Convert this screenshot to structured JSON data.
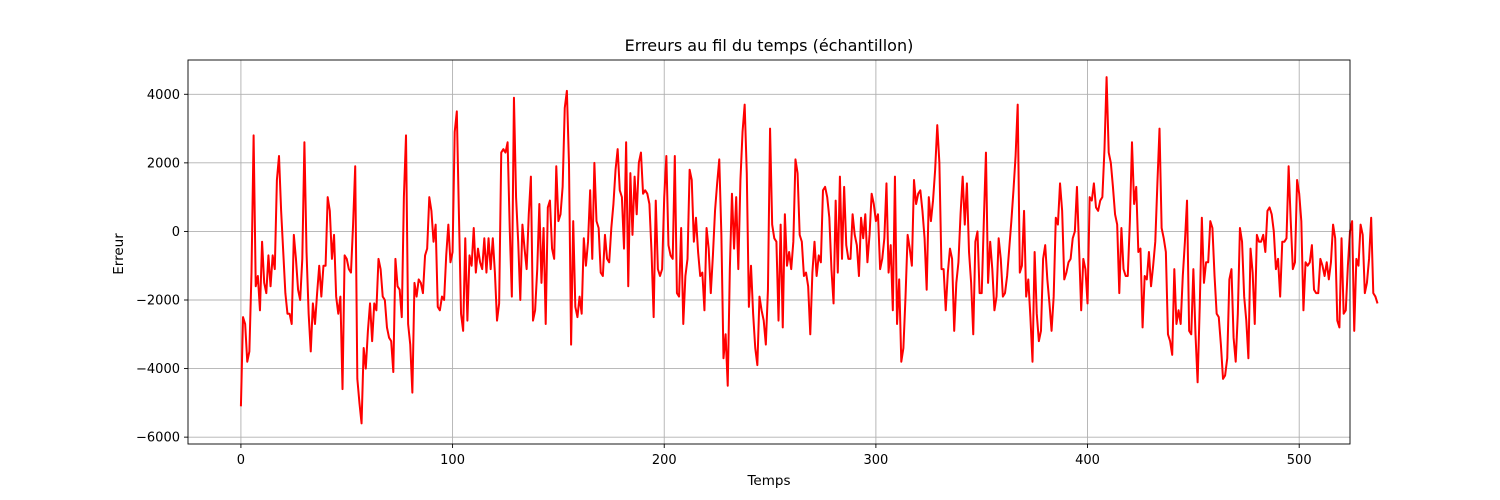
{
  "chart_data": {
    "type": "line",
    "title": "Erreurs au fil du temps (échantillon)",
    "xlabel": "Temps",
    "ylabel": "Erreur",
    "xlim": [
      -25,
      524
    ],
    "ylim": [
      -6200,
      5000
    ],
    "xticks": [
      0,
      100,
      200,
      300,
      400,
      500
    ],
    "yticks": [
      -6000,
      -4000,
      -2000,
      0,
      2000,
      4000
    ],
    "grid": true,
    "series": [
      {
        "color": "#ff0000",
        "x_start": 0,
        "x_step": 1,
        "values": [
          -5100,
          -2500,
          -2700,
          -3800,
          -3500,
          -1200,
          2800,
          -1600,
          -1300,
          -2300,
          -300,
          -1500,
          -1800,
          -700,
          -1600,
          -700,
          -1100,
          1500,
          2200,
          600,
          -600,
          -1800,
          -2400,
          -2400,
          -2700,
          -100,
          -800,
          -1700,
          -2000,
          -800,
          2600,
          -600,
          -2400,
          -3500,
          -2100,
          -2700,
          -1800,
          -1000,
          -1900,
          -1000,
          -1000,
          1000,
          600,
          -800,
          -100,
          -1900,
          -2400,
          -1900,
          -4600,
          -700,
          -800,
          -1100,
          -1200,
          200,
          1900,
          -4300,
          -5000,
          -5600,
          -3400,
          -4000,
          -2900,
          -2100,
          -3200,
          -2100,
          -2300,
          -800,
          -1100,
          -1900,
          -2000,
          -2800,
          -3100,
          -3200,
          -4100,
          -800,
          -1600,
          -1700,
          -2500,
          1000,
          2800,
          -2700,
          -3300,
          -4700,
          -1500,
          -1900,
          -1400,
          -1500,
          -1800,
          -700,
          -500,
          1000,
          600,
          -300,
          200,
          -2200,
          -2300,
          -1900,
          -2000,
          -700,
          200,
          -900,
          -600,
          2900,
          3500,
          500,
          -2400,
          -2900,
          -200,
          -2600,
          -700,
          -1000,
          100,
          -1200,
          -500,
          -900,
          -1100,
          -200,
          -1200,
          -200,
          -1100,
          -200,
          -1200,
          -2600,
          -2100,
          2300,
          2400,
          2300,
          2600,
          100,
          -1900,
          3900,
          1000,
          -300,
          -2000,
          200,
          -500,
          -1100,
          500,
          1600,
          -2600,
          -2300,
          -1100,
          800,
          -1500,
          100,
          -2700,
          700,
          900,
          -500,
          -800,
          1900,
          300,
          500,
          1300,
          3600,
          4100,
          2000,
          -3300,
          300,
          -2200,
          -2500,
          -1900,
          -2400,
          -200,
          -1000,
          -300,
          1200,
          -800,
          2000,
          300,
          100,
          -1200,
          -1300,
          -100,
          -800,
          -900,
          100,
          800,
          1800,
          2400,
          1200,
          1000,
          -500,
          2600,
          -1600,
          1700,
          -100,
          1600,
          500,
          2000,
          2300,
          1100,
          1200,
          1100,
          800,
          -600,
          -2500,
          900,
          -1100,
          -1300,
          -1100,
          1000,
          2200,
          -400,
          -700,
          -800,
          2200,
          -1800,
          -1900,
          100,
          -2700,
          -1300,
          -800,
          1800,
          1500,
          -300,
          400,
          -600,
          -1300,
          -1200,
          -2300,
          100,
          -500,
          -1800,
          -700,
          600,
          1400,
          2100,
          -100,
          -3700,
          -3000,
          -4500,
          -1100,
          1100,
          -500,
          1000,
          -1100,
          1500,
          2900,
          3700,
          1700,
          -2200,
          -1000,
          -2400,
          -3400,
          -3900,
          -1900,
          -2300,
          -2600,
          -3300,
          -1700,
          3000,
          200,
          -200,
          -300,
          -2600,
          200,
          -2800,
          500,
          -1000,
          -600,
          -1100,
          -300,
          2100,
          1700,
          -100,
          -300,
          -1300,
          -1200,
          -1600,
          -3000,
          -1200,
          -300,
          -1300,
          -700,
          -900,
          1200,
          1300,
          1000,
          400,
          -1100,
          -2100,
          900,
          -1200,
          1600,
          -800,
          1300,
          -400,
          -800,
          -800,
          500,
          -100,
          -400,
          -1300,
          400,
          -200,
          500,
          -900,
          -100,
          1100,
          800,
          300,
          500,
          -1100,
          -800,
          -200,
          1400,
          -1200,
          -400,
          -2300,
          1600,
          -2700,
          -1400,
          -3800,
          -3400,
          -1900,
          -100,
          -500,
          -1000,
          1500,
          800,
          1100,
          1200,
          600,
          -200,
          -1700,
          1000,
          300,
          900,
          1800,
          3100,
          2000,
          -1100,
          -1100,
          -2300,
          -1200,
          -500,
          -800,
          -2900,
          -1500,
          -900,
          500,
          1600,
          200,
          1400,
          -600,
          -1500,
          -3000,
          -300,
          0,
          -1800,
          -1800,
          300,
          2300,
          -1500,
          -300,
          -1100,
          -2300,
          -1900,
          -200,
          -800,
          -1900,
          -1800,
          -1300,
          -500,
          300,
          1200,
          2200,
          3700,
          -1200,
          -1000,
          600,
          -1900,
          -1400,
          -2500,
          -3800,
          -600,
          -2400,
          -3200,
          -2900,
          -800,
          -400,
          -1400,
          -2100,
          -2900,
          -1900,
          400,
          200,
          1400,
          600,
          -1400,
          -1200,
          -900,
          -800,
          -200,
          0,
          1300,
          -500,
          -2300,
          -800,
          -1100,
          -2100,
          1000,
          900,
          1400,
          700,
          600,
          900,
          1000,
          2400,
          4500,
          2300,
          2000,
          1300,
          500,
          200,
          -1800,
          100,
          -1100,
          -1300,
          -1300,
          300,
          2600,
          800,
          1300,
          -600,
          -500,
          -2800,
          -1300,
          -1400,
          -600,
          -1600,
          -1000,
          -300,
          1400,
          3000,
          100,
          -200,
          -600,
          -3000,
          -3200,
          -3600,
          -1100,
          -2700,
          -2300,
          -2700,
          -1300,
          -300,
          900,
          -2900,
          -3000,
          -1100,
          -3000,
          -4400,
          -2200,
          400,
          -1500,
          -900,
          -900,
          300,
          100,
          -1300,
          -2400,
          -2500,
          -3300,
          -4300,
          -4200,
          -3700,
          -1400,
          -1100,
          -3100,
          -3800,
          -2400,
          100,
          -300,
          -1900,
          -2600,
          -3700,
          -500,
          -1200,
          -2700,
          -100,
          -300,
          -300,
          -100,
          -600,
          600,
          700,
          500,
          0,
          -1100,
          -800,
          -1900,
          -300,
          -300,
          -200,
          1900,
          300,
          -1100,
          -900,
          1500,
          1100,
          300,
          -2300,
          -900,
          -1000,
          -900,
          -400,
          -1700,
          -1800,
          -1800,
          -800,
          -1000,
          -1300,
          -900,
          -1400,
          -900,
          200,
          -200,
          -2600,
          -2800,
          -200,
          -2400,
          -2300,
          -1000,
          0,
          300,
          -2900,
          -800,
          -1000,
          200,
          -100,
          -1800,
          -1500,
          -800,
          400,
          -1800,
          -1900,
          -2100
        ]
      }
    ]
  }
}
